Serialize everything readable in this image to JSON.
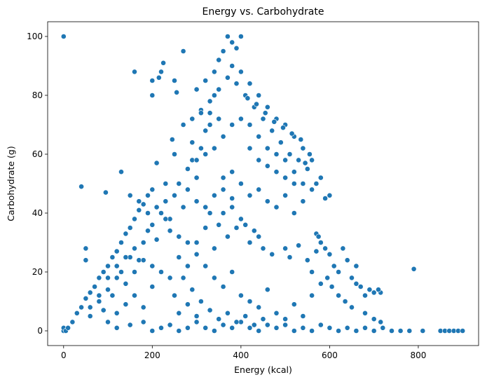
{
  "chart_data": {
    "type": "scatter",
    "title": "Energy vs. Carbohydrate",
    "xlabel": "Energy (kcal)",
    "ylabel": "Carbohydrate (g)",
    "xlim": [
      -36,
      936
    ],
    "ylim": [
      -5,
      105
    ],
    "xticks": [
      0,
      200,
      400,
      600,
      800
    ],
    "yticks": [
      0,
      20,
      40,
      60,
      80,
      100
    ],
    "grid": false,
    "color": "#1f77b4",
    "points": [
      [
        0,
        100
      ],
      [
        0,
        0
      ],
      [
        0,
        1
      ],
      [
        5,
        0
      ],
      [
        10,
        1
      ],
      [
        20,
        3
      ],
      [
        30,
        6
      ],
      [
        40,
        8
      ],
      [
        50,
        11
      ],
      [
        60,
        13
      ],
      [
        70,
        15
      ],
      [
        80,
        18
      ],
      [
        90,
        20
      ],
      [
        100,
        22
      ],
      [
        110,
        25
      ],
      [
        120,
        27
      ],
      [
        130,
        30
      ],
      [
        140,
        33
      ],
      [
        150,
        35
      ],
      [
        160,
        38
      ],
      [
        170,
        41
      ],
      [
        180,
        43
      ],
      [
        190,
        46
      ],
      [
        200,
        48
      ],
      [
        40,
        49
      ],
      [
        50,
        28
      ],
      [
        50,
        24
      ],
      [
        95,
        47
      ],
      [
        130,
        54
      ],
      [
        160,
        88
      ],
      [
        200,
        80
      ],
      [
        200,
        85
      ],
      [
        215,
        86
      ],
      [
        220,
        88
      ],
      [
        225,
        91
      ],
      [
        270,
        95
      ],
      [
        250,
        85
      ],
      [
        255,
        81
      ],
      [
        250,
        60
      ],
      [
        245,
        65
      ],
      [
        230,
        50
      ],
      [
        210,
        57
      ],
      [
        60,
        5
      ],
      [
        80,
        10
      ],
      [
        90,
        7
      ],
      [
        100,
        14
      ],
      [
        110,
        12
      ],
      [
        120,
        18
      ],
      [
        130,
        20
      ],
      [
        140,
        16
      ],
      [
        150,
        25
      ],
      [
        160,
        28
      ],
      [
        170,
        24
      ],
      [
        180,
        30
      ],
      [
        190,
        34
      ],
      [
        200,
        36
      ],
      [
        210,
        31
      ],
      [
        220,
        40
      ],
      [
        230,
        44
      ],
      [
        240,
        38
      ],
      [
        250,
        46
      ],
      [
        260,
        50
      ],
      [
        270,
        42
      ],
      [
        280,
        55
      ],
      [
        290,
        58
      ],
      [
        300,
        52
      ],
      [
        310,
        62
      ],
      [
        320,
        68
      ],
      [
        330,
        74
      ],
      [
        340,
        80
      ],
      [
        100,
        3
      ],
      [
        120,
        6
      ],
      [
        140,
        9
      ],
      [
        160,
        12
      ],
      [
        180,
        8
      ],
      [
        200,
        15
      ],
      [
        220,
        20
      ],
      [
        240,
        18
      ],
      [
        260,
        25
      ],
      [
        280,
        22
      ],
      [
        300,
        30
      ],
      [
        320,
        35
      ],
      [
        340,
        28
      ],
      [
        360,
        40
      ],
      [
        380,
        45
      ],
      [
        400,
        50
      ],
      [
        120,
        1
      ],
      [
        150,
        2
      ],
      [
        180,
        3
      ],
      [
        200,
        0
      ],
      [
        220,
        1
      ],
      [
        240,
        2
      ],
      [
        260,
        0
      ],
      [
        280,
        1
      ],
      [
        300,
        3
      ],
      [
        320,
        1
      ],
      [
        340,
        0
      ],
      [
        360,
        2
      ],
      [
        380,
        1
      ],
      [
        400,
        3
      ],
      [
        420,
        1
      ],
      [
        440,
        0
      ],
      [
        460,
        2
      ],
      [
        480,
        1
      ],
      [
        500,
        2
      ],
      [
        520,
        0
      ],
      [
        540,
        1
      ],
      [
        560,
        0
      ],
      [
        580,
        2
      ],
      [
        600,
        1
      ],
      [
        620,
        0
      ],
      [
        640,
        1
      ],
      [
        660,
        0
      ],
      [
        680,
        1
      ],
      [
        700,
        0
      ],
      [
        720,
        1
      ],
      [
        740,
        0
      ],
      [
        760,
        0
      ],
      [
        780,
        0
      ],
      [
        810,
        0
      ],
      [
        850,
        0
      ],
      [
        860,
        0
      ],
      [
        870,
        0
      ],
      [
        880,
        0
      ],
      [
        890,
        0
      ],
      [
        900,
        0
      ],
      [
        300,
        82
      ],
      [
        320,
        85
      ],
      [
        340,
        88
      ],
      [
        350,
        92
      ],
      [
        360,
        95
      ],
      [
        370,
        100
      ],
      [
        380,
        98
      ],
      [
        390,
        96
      ],
      [
        400,
        100
      ],
      [
        380,
        90
      ],
      [
        400,
        88
      ],
      [
        420,
        84
      ],
      [
        440,
        80
      ],
      [
        460,
        76
      ],
      [
        480,
        72
      ],
      [
        500,
        70
      ],
      [
        520,
        66
      ],
      [
        540,
        62
      ],
      [
        560,
        58
      ],
      [
        580,
        52
      ],
      [
        600,
        46
      ],
      [
        310,
        75
      ],
      [
        330,
        78
      ],
      [
        350,
        82
      ],
      [
        370,
        86
      ],
      [
        390,
        84
      ],
      [
        410,
        80
      ],
      [
        430,
        76
      ],
      [
        450,
        72
      ],
      [
        470,
        68
      ],
      [
        490,
        64
      ],
      [
        510,
        60
      ],
      [
        530,
        58
      ],
      [
        550,
        55
      ],
      [
        570,
        50
      ],
      [
        290,
        64
      ],
      [
        300,
        58
      ],
      [
        320,
        60
      ],
      [
        340,
        62
      ],
      [
        360,
        66
      ],
      [
        380,
        70
      ],
      [
        400,
        72
      ],
      [
        420,
        70
      ],
      [
        440,
        66
      ],
      [
        460,
        62
      ],
      [
        480,
        60
      ],
      [
        500,
        58
      ],
      [
        520,
        54
      ],
      [
        540,
        50
      ],
      [
        560,
        48
      ],
      [
        360,
        52
      ],
      [
        380,
        54
      ],
      [
        400,
        50
      ],
      [
        420,
        46
      ],
      [
        440,
        48
      ],
      [
        460,
        44
      ],
      [
        480,
        42
      ],
      [
        500,
        46
      ],
      [
        520,
        40
      ],
      [
        540,
        44
      ],
      [
        590,
        45
      ],
      [
        330,
        40
      ],
      [
        350,
        36
      ],
      [
        370,
        32
      ],
      [
        390,
        35
      ],
      [
        420,
        30
      ],
      [
        440,
        32
      ],
      [
        450,
        28
      ],
      [
        470,
        26
      ],
      [
        500,
        28
      ],
      [
        510,
        25
      ],
      [
        530,
        29
      ],
      [
        280,
        30
      ],
      [
        300,
        26
      ],
      [
        320,
        22
      ],
      [
        340,
        18
      ],
      [
        360,
        15
      ],
      [
        380,
        20
      ],
      [
        400,
        12
      ],
      [
        420,
        10
      ],
      [
        440,
        8
      ],
      [
        460,
        14
      ],
      [
        480,
        6
      ],
      [
        500,
        4
      ],
      [
        520,
        9
      ],
      [
        540,
        5
      ],
      [
        560,
        12
      ],
      [
        580,
        16
      ],
      [
        550,
        24
      ],
      [
        570,
        27
      ],
      [
        580,
        30
      ],
      [
        590,
        28
      ],
      [
        600,
        26
      ],
      [
        610,
        22
      ],
      [
        620,
        20
      ],
      [
        630,
        28
      ],
      [
        640,
        24
      ],
      [
        650,
        18
      ],
      [
        660,
        22
      ],
      [
        670,
        15
      ],
      [
        680,
        12
      ],
      [
        690,
        14
      ],
      [
        700,
        13
      ],
      [
        715,
        13
      ],
      [
        710,
        14
      ],
      [
        790,
        21
      ],
      [
        570,
        33
      ],
      [
        575,
        32
      ],
      [
        595,
        18
      ],
      [
        605,
        15
      ],
      [
        620,
        12
      ],
      [
        635,
        10
      ],
      [
        650,
        8
      ],
      [
        660,
        16
      ],
      [
        680,
        6
      ],
      [
        700,
        4
      ],
      [
        715,
        3
      ],
      [
        560,
        20
      ],
      [
        250,
        12
      ],
      [
        260,
        6
      ],
      [
        270,
        18
      ],
      [
        280,
        9
      ],
      [
        290,
        14
      ],
      [
        300,
        5
      ],
      [
        310,
        10
      ],
      [
        330,
        7
      ],
      [
        350,
        4
      ],
      [
        370,
        6
      ],
      [
        390,
        3
      ],
      [
        410,
        5
      ],
      [
        430,
        2
      ],
      [
        450,
        4
      ],
      [
        150,
        46
      ],
      [
        170,
        44
      ],
      [
        190,
        40
      ],
      [
        210,
        42
      ],
      [
        230,
        38
      ],
      [
        240,
        34
      ],
      [
        260,
        32
      ],
      [
        180,
        24
      ],
      [
        200,
        22
      ],
      [
        160,
        20
      ],
      [
        140,
        25
      ],
      [
        120,
        22
      ],
      [
        100,
        18
      ],
      [
        80,
        12
      ],
      [
        60,
        8
      ],
      [
        420,
        62
      ],
      [
        440,
        58
      ],
      [
        460,
        56
      ],
      [
        480,
        54
      ],
      [
        500,
        52
      ],
      [
        520,
        50
      ],
      [
        545,
        57
      ],
      [
        555,
        60
      ],
      [
        535,
        65
      ],
      [
        515,
        67
      ],
      [
        495,
        69
      ],
      [
        475,
        71
      ],
      [
        455,
        74
      ],
      [
        435,
        77
      ],
      [
        415,
        79
      ],
      [
        270,
        70
      ],
      [
        290,
        72
      ],
      [
        310,
        74
      ],
      [
        330,
        70
      ],
      [
        350,
        72
      ],
      [
        280,
        48
      ],
      [
        300,
        44
      ],
      [
        320,
        42
      ],
      [
        340,
        46
      ],
      [
        360,
        48
      ],
      [
        380,
        42
      ],
      [
        400,
        38
      ],
      [
        410,
        36
      ],
      [
        430,
        34
      ]
    ]
  }
}
